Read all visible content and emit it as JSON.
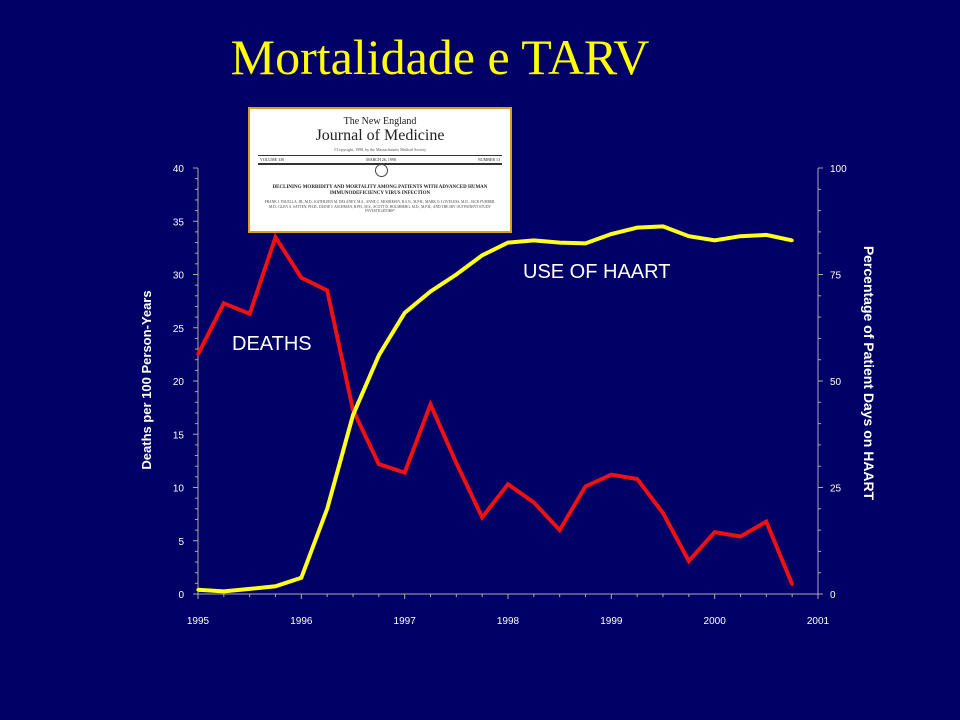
{
  "slide": {
    "title": "Mortalidade e TARV"
  },
  "journal_clipping": {
    "masthead_line1": "The New England",
    "masthead_line2": "Journal of Medicine",
    "copyright": "©Copyright, 1998, by the Massachusetts Medical Society",
    "volume": "VOLUME 338",
    "date": "MARCH 26, 1998",
    "number": "NUMBER 13",
    "article_title": "DECLINING MORBIDITY AND MORTALITY AMONG PATIENTS WITH ADVANCED HUMAN IMMUNODEFICIENCY VIRUS INFECTION",
    "authors": "FRANK J. PALELLA, JR., M.D., KATHLEEN M. DELANEY, M.S., ANNE C. MOORMAN, B.S.N., M.P.H., MARK O. LOVELESS, M.D., JACK FUHRER, M.D., GLEN A. SATTEN, PH.D., DIANE J. ASCHMAN, R.PH., M.S., SCOTT D. HOLMBERG, M.D., M.P.H., AND THE HIV OUTPATIENT STUDY INVESTIGATORS*"
  },
  "chart_data": {
    "type": "line",
    "xlabel": "",
    "ylabel": "Deaths  per 100 Person-Years",
    "y2label": "Percentage of Patient Days on HAART",
    "xlim": [
      1995,
      2001
    ],
    "xticks": [
      "1995",
      "1996",
      "1997",
      "1998",
      "1999",
      "2000",
      "2001"
    ],
    "ylim": [
      0,
      40
    ],
    "yticks": [
      "0",
      "5",
      "10",
      "15",
      "20",
      "25",
      "30",
      "35",
      "40"
    ],
    "y2lim": [
      0,
      100
    ],
    "y2ticks": [
      "0",
      "25",
      "50",
      "75",
      "100"
    ],
    "grid": false,
    "series": [
      {
        "name": "DEATHS",
        "axis": "left",
        "color": "#ee1111",
        "x": [
          1995.0,
          1995.25,
          1995.5,
          1995.75,
          1996.0,
          1996.25,
          1996.5,
          1996.75,
          1997.0,
          1997.25,
          1997.5,
          1997.75,
          1998.0,
          1998.25,
          1998.5,
          1998.75,
          1999.0,
          1999.25,
          1999.5,
          1999.75,
          2000.0,
          2000.25,
          2000.5,
          2000.75
        ],
        "values": [
          22.5,
          27.3,
          26.3,
          33.5,
          29.7,
          28.5,
          17.3,
          12.2,
          11.4,
          17.8,
          12.3,
          7.2,
          10.3,
          8.6,
          6.0,
          10.1,
          11.2,
          10.8,
          7.6,
          3.1,
          5.8,
          5.4,
          6.8,
          0.9
        ]
      },
      {
        "name": "USE OF HAART",
        "axis": "right",
        "color": "#ffff22",
        "x": [
          1995.0,
          1995.25,
          1995.5,
          1995.75,
          1996.0,
          1996.25,
          1996.5,
          1996.75,
          1997.0,
          1997.25,
          1997.5,
          1997.75,
          1998.0,
          1998.25,
          1998.5,
          1998.75,
          1999.0,
          1999.25,
          1999.5,
          1999.75,
          2000.0,
          2000.25,
          2000.5,
          2000.75
        ],
        "values": [
          1,
          0.6,
          1.2,
          1.8,
          3.8,
          20,
          42,
          56,
          66,
          71,
          75,
          79.5,
          82.5,
          83,
          82.5,
          82.3,
          84.5,
          86,
          86.3,
          84,
          83,
          84,
          84.3,
          83
        ]
      }
    ]
  }
}
